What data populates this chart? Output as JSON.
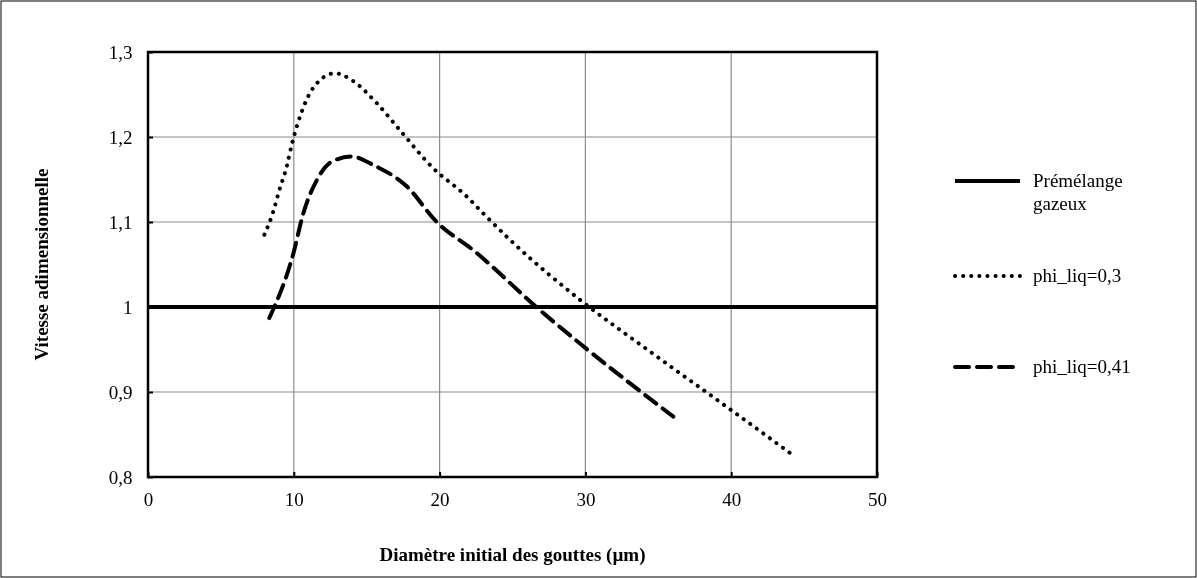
{
  "chart_data": {
    "type": "line",
    "xlabel": "Diamètre initial des gouttes (µm)",
    "ylabel": "Vitesse adimensionnelle",
    "xlim": [
      0,
      50
    ],
    "xticks": [
      0,
      10,
      20,
      30,
      40,
      50
    ],
    "ylim": [
      0.8,
      1.3
    ],
    "yticks": [
      {
        "value": 0.8,
        "label": "0,8"
      },
      {
        "value": 0.9,
        "label": "0,9"
      },
      1,
      {
        "value": 1.1,
        "label": "1,1"
      },
      {
        "value": 1.2,
        "label": "1,2"
      },
      {
        "value": 1.3,
        "label": "1,3"
      }
    ],
    "grid": true,
    "legend": "right",
    "marker": "none",
    "series": [
      {
        "name": "Prémélange gazeux",
        "color": "#000000",
        "line_style": "solid",
        "x": [
          0,
          50
        ],
        "values": [
          1,
          1
        ]
      },
      {
        "name": "phi_liq=0,3",
        "color": "#000000",
        "line_style": "dotted",
        "x": [
          7.98,
          8.55,
          9.0,
          9.51,
          9.86,
          10.31,
          10.88,
          11.8,
          12.83,
          13.97,
          15.68,
          17.28,
          19.46,
          21.86,
          23.0,
          24.83,
          29.74,
          34.32,
          39.57,
          44.14
        ],
        "values": [
          1.085,
          1.11,
          1.137,
          1.165,
          1.191,
          1.218,
          1.244,
          1.267,
          1.275,
          1.267,
          1.24,
          1.208,
          1.165,
          1.13,
          1.11,
          1.079,
          1.007,
          0.949,
          0.884,
          0.827
        ]
      },
      {
        "name": "phi_liq=0,41",
        "color": "#000000",
        "line_style": "dashed",
        "x": [
          8.32,
          9.97,
          10.65,
          11.57,
          12.6,
          13.97,
          15.46,
          17.74,
          19.8,
          22.3,
          26.9,
          29.63,
          36.03
        ],
        "values": [
          0.987,
          1.063,
          1.11,
          1.149,
          1.171,
          1.177,
          1.167,
          1.142,
          1.1,
          1.067,
          0.996,
          0.957,
          0.871
        ]
      }
    ]
  }
}
